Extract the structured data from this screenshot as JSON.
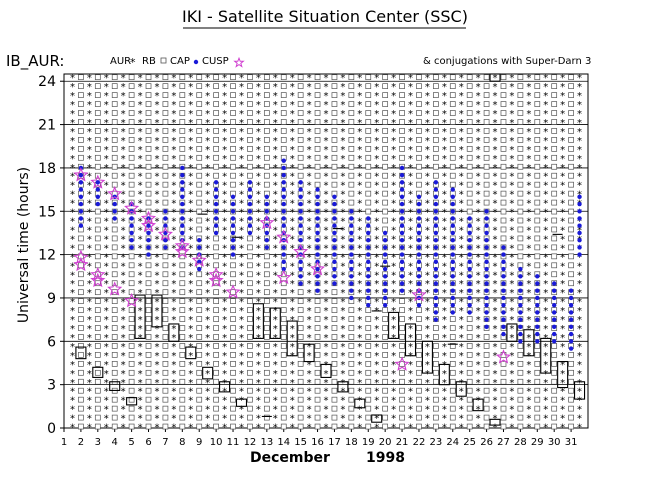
{
  "chart_data": {
    "type": "scatter",
    "title": "IKI - Satellite Situation Center (SSC)",
    "panel_label": "IB_AUR:",
    "right_note": "& conjugations with Super-Darn 3",
    "ylabel": "Universal time (hours)",
    "xlabel": "December",
    "year": "1998",
    "xlim": [
      1,
      32
    ],
    "ylim": [
      0,
      24.5
    ],
    "yticks": [
      0,
      3,
      6,
      9,
      12,
      15,
      18,
      21,
      24
    ],
    "xticks": [
      1,
      2,
      3,
      4,
      5,
      6,
      7,
      8,
      9,
      10,
      11,
      12,
      13,
      14,
      15,
      16,
      17,
      18,
      19,
      20,
      21,
      22,
      23,
      24,
      25,
      26,
      27,
      28,
      29,
      30,
      31
    ],
    "grid": "horizontal",
    "legend": [
      {
        "key": "aur",
        "label": "AUR",
        "color": "#00d0d8",
        "marker": "asterisk"
      },
      {
        "key": "rb",
        "label": "RB",
        "color": "#555555",
        "marker": "open-square"
      },
      {
        "key": "cap",
        "label": "CAP",
        "color": "#555555",
        "marker": "open-square"
      },
      {
        "key": "cusp",
        "label": "CUSP",
        "color": "#1a1ad8",
        "marker": "dot"
      },
      {
        "key": "conj",
        "label": "",
        "color": "#d040d0",
        "marker": "star"
      }
    ],
    "passes": [
      {
        "x": 1.5,
        "type": "aur"
      },
      {
        "x": 2.0,
        "type": "cap"
      },
      {
        "x": 2.5,
        "type": "aur"
      },
      {
        "x": 3.0,
        "type": "cap"
      },
      {
        "x": 3.5,
        "type": "aur"
      },
      {
        "x": 4.0,
        "type": "cap"
      },
      {
        "x": 4.5,
        "type": "aur"
      },
      {
        "x": 5.0,
        "type": "cap"
      },
      {
        "x": 5.5,
        "type": "aur"
      },
      {
        "x": 6.0,
        "type": "cap"
      },
      {
        "x": 6.5,
        "type": "aur"
      },
      {
        "x": 7.0,
        "type": "cap"
      },
      {
        "x": 7.5,
        "type": "aur"
      },
      {
        "x": 8.0,
        "type": "cap"
      },
      {
        "x": 8.5,
        "type": "aur"
      },
      {
        "x": 9.0,
        "type": "cap"
      },
      {
        "x": 9.5,
        "type": "aur"
      },
      {
        "x": 10.0,
        "type": "cap"
      },
      {
        "x": 10.5,
        "type": "aur"
      },
      {
        "x": 11.0,
        "type": "cap"
      },
      {
        "x": 11.5,
        "type": "aur"
      },
      {
        "x": 12.0,
        "type": "cap"
      },
      {
        "x": 12.5,
        "type": "aur"
      },
      {
        "x": 13.0,
        "type": "cap"
      },
      {
        "x": 13.5,
        "type": "aur"
      },
      {
        "x": 14.0,
        "type": "cap"
      },
      {
        "x": 14.5,
        "type": "aur"
      },
      {
        "x": 15.0,
        "type": "cap"
      },
      {
        "x": 15.5,
        "type": "aur"
      },
      {
        "x": 16.0,
        "type": "cap"
      },
      {
        "x": 16.5,
        "type": "aur"
      },
      {
        "x": 17.0,
        "type": "cap"
      },
      {
        "x": 17.5,
        "type": "aur"
      },
      {
        "x": 18.0,
        "type": "cap"
      },
      {
        "x": 18.5,
        "type": "aur"
      },
      {
        "x": 19.0,
        "type": "cap"
      },
      {
        "x": 19.5,
        "type": "aur"
      },
      {
        "x": 20.0,
        "type": "cap"
      },
      {
        "x": 20.5,
        "type": "aur"
      },
      {
        "x": 21.0,
        "type": "cap"
      },
      {
        "x": 21.5,
        "type": "aur"
      },
      {
        "x": 22.0,
        "type": "cap"
      },
      {
        "x": 22.5,
        "type": "aur"
      },
      {
        "x": 23.0,
        "type": "cap"
      },
      {
        "x": 23.5,
        "type": "aur"
      },
      {
        "x": 24.0,
        "type": "cap"
      },
      {
        "x": 24.5,
        "type": "aur"
      },
      {
        "x": 25.0,
        "type": "cap"
      },
      {
        "x": 25.5,
        "type": "aur"
      },
      {
        "x": 26.0,
        "type": "cap"
      },
      {
        "x": 26.5,
        "type": "aur"
      },
      {
        "x": 27.0,
        "type": "cap"
      },
      {
        "x": 27.5,
        "type": "aur"
      },
      {
        "x": 28.0,
        "type": "cap"
      },
      {
        "x": 28.5,
        "type": "aur"
      },
      {
        "x": 29.0,
        "type": "cap"
      },
      {
        "x": 29.5,
        "type": "aur"
      },
      {
        "x": 30.0,
        "type": "cap"
      },
      {
        "x": 30.5,
        "type": "aur"
      },
      {
        "x": 31.0,
        "type": "cap"
      },
      {
        "x": 31.5,
        "type": "aur"
      }
    ],
    "cusp": [
      {
        "x": 2.0,
        "y0": 14.0,
        "y1": 18.0
      },
      {
        "x": 3.0,
        "y0": 15.5,
        "y1": 17.0
      },
      {
        "x": 4.0,
        "y0": 14.5,
        "y1": 16.0
      },
      {
        "x": 5.0,
        "y0": 12.5,
        "y1": 15.5
      },
      {
        "x": 6.0,
        "y0": 12.0,
        "y1": 14.5
      },
      {
        "x": 7.0,
        "y0": 12.5,
        "y1": 15.0
      },
      {
        "x": 8.0,
        "y0": 12.5,
        "y1": 18.0
      },
      {
        "x": 9.0,
        "y0": 11.0,
        "y1": 13.0
      },
      {
        "x": 10.0,
        "y0": 13.5,
        "y1": 17.0
      },
      {
        "x": 11.0,
        "y0": 12.0,
        "y1": 16.0
      },
      {
        "x": 12.0,
        "y0": 13.5,
        "y1": 17.0
      },
      {
        "x": 13.0,
        "y0": 12.5,
        "y1": 16.0
      },
      {
        "x": 14.0,
        "y0": 11.0,
        "y1": 18.5
      },
      {
        "x": 15.0,
        "y0": 10.0,
        "y1": 17.0
      },
      {
        "x": 16.0,
        "y0": 9.5,
        "y1": 16.5
      },
      {
        "x": 17.0,
        "y0": 10.0,
        "y1": 16.0
      },
      {
        "x": 18.0,
        "y0": 9.0,
        "y1": 15.0
      },
      {
        "x": 19.0,
        "y0": 8.5,
        "y1": 14.5
      },
      {
        "x": 20.0,
        "y0": 8.5,
        "y1": 13.5
      },
      {
        "x": 21.0,
        "y0": 9.5,
        "y1": 18.0
      },
      {
        "x": 22.0,
        "y0": 8.5,
        "y1": 16.0
      },
      {
        "x": 23.0,
        "y0": 7.5,
        "y1": 17.0
      },
      {
        "x": 24.0,
        "y0": 8.0,
        "y1": 16.5
      },
      {
        "x": 25.0,
        "y0": 8.0,
        "y1": 14.5
      },
      {
        "x": 26.0,
        "y0": 7.0,
        "y1": 15.0
      },
      {
        "x": 27.0,
        "y0": 6.5,
        "y1": 12.5
      },
      {
        "x": 28.0,
        "y0": 6.0,
        "y1": 11.0
      },
      {
        "x": 29.0,
        "y0": 6.0,
        "y1": 10.5
      },
      {
        "x": 30.0,
        "y0": 6.0,
        "y1": 10.0
      },
      {
        "x": 31.0,
        "y0": 5.5,
        "y1": 9.5
      },
      {
        "x": 31.5,
        "y0": 12.0,
        "y1": 16.0
      }
    ],
    "conjunction_boxes": [
      {
        "x": 2.0,
        "y0": 4.8,
        "y1": 5.6
      },
      {
        "x": 3.0,
        "y0": 3.5,
        "y1": 4.2
      },
      {
        "x": 4.0,
        "y0": 2.6,
        "y1": 3.2
      },
      {
        "x": 5.0,
        "y0": 1.6,
        "y1": 2.1
      },
      {
        "x": 5.5,
        "y0": 6.2,
        "y1": 9.2
      },
      {
        "x": 6.5,
        "y0": 7.0,
        "y1": 9.2
      },
      {
        "x": 7.5,
        "y0": 6.0,
        "y1": 7.2
      },
      {
        "x": 8.5,
        "y0": 4.8,
        "y1": 5.6
      },
      {
        "x": 9.5,
        "y0": 3.4,
        "y1": 4.2
      },
      {
        "x": 10.5,
        "y0": 2.5,
        "y1": 3.2
      },
      {
        "x": 11.5,
        "y0": 1.5,
        "y1": 2.0
      },
      {
        "x": 12.5,
        "y0": 6.2,
        "y1": 8.6
      },
      {
        "x": 13.5,
        "y0": 6.2,
        "y1": 8.3
      },
      {
        "x": 14.5,
        "y0": 5.0,
        "y1": 7.4
      },
      {
        "x": 15.5,
        "y0": 4.6,
        "y1": 5.8
      },
      {
        "x": 16.5,
        "y0": 3.5,
        "y1": 4.4
      },
      {
        "x": 17.5,
        "y0": 2.5,
        "y1": 3.2
      },
      {
        "x": 18.5,
        "y0": 1.4,
        "y1": 2.0
      },
      {
        "x": 19.5,
        "y0": 0.4,
        "y1": 0.9
      },
      {
        "x": 20.5,
        "y0": 6.2,
        "y1": 8.0
      },
      {
        "x": 21.5,
        "y0": 5.0,
        "y1": 7.2
      },
      {
        "x": 22.5,
        "y0": 3.8,
        "y1": 6.0
      },
      {
        "x": 23.5,
        "y0": 3.0,
        "y1": 4.4
      },
      {
        "x": 24.5,
        "y0": 2.2,
        "y1": 3.2
      },
      {
        "x": 25.5,
        "y0": 1.2,
        "y1": 2.0
      },
      {
        "x": 26.5,
        "y0": 0.2,
        "y1": 0.6
      },
      {
        "x": 27.5,
        "y0": 6.0,
        "y1": 7.2
      },
      {
        "x": 28.5,
        "y0": 5.0,
        "y1": 6.8
      },
      {
        "x": 29.5,
        "y0": 3.8,
        "y1": 6.2
      },
      {
        "x": 30.5,
        "y0": 2.8,
        "y1": 4.6
      },
      {
        "x": 31.5,
        "y0": 2.0,
        "y1": 3.2
      },
      {
        "x": 26.5,
        "y0": 24.0,
        "y1": 24.5
      }
    ],
    "stars": [
      {
        "x": 2.0,
        "y": 17.5
      },
      {
        "x": 2.0,
        "y": 11.8
      },
      {
        "x": 2.0,
        "y": 11.3
      },
      {
        "x": 3.0,
        "y": 17.0
      },
      {
        "x": 3.0,
        "y": 10.6
      },
      {
        "x": 3.0,
        "y": 10.2
      },
      {
        "x": 4.0,
        "y": 16.2
      },
      {
        "x": 4.0,
        "y": 9.6
      },
      {
        "x": 5.0,
        "y": 15.2
      },
      {
        "x": 5.0,
        "y": 8.8
      },
      {
        "x": 6.0,
        "y": 14.5
      },
      {
        "x": 6.0,
        "y": 14.0
      },
      {
        "x": 7.0,
        "y": 13.4
      },
      {
        "x": 8.0,
        "y": 12.6
      },
      {
        "x": 8.0,
        "y": 12.2
      },
      {
        "x": 9.0,
        "y": 11.6
      },
      {
        "x": 10.0,
        "y": 10.6
      },
      {
        "x": 10.0,
        "y": 10.2
      },
      {
        "x": 11.0,
        "y": 9.4
      },
      {
        "x": 13.0,
        "y": 14.2
      },
      {
        "x": 14.0,
        "y": 13.2
      },
      {
        "x": 14.0,
        "y": 10.4
      },
      {
        "x": 15.0,
        "y": 12.2
      },
      {
        "x": 16.0,
        "y": 11.0
      },
      {
        "x": 21.0,
        "y": 4.4
      },
      {
        "x": 22.0,
        "y": 9.2
      },
      {
        "x": 27.0,
        "y": 4.9
      }
    ],
    "dashes": [
      {
        "x": 9.2,
        "y": 14.8
      },
      {
        "x": 11.2,
        "y": 13.2
      },
      {
        "x": 13.0,
        "y": 0.8
      },
      {
        "x": 17.2,
        "y": 13.8
      },
      {
        "x": 19.5,
        "y": 8.1
      },
      {
        "x": 20.0,
        "y": 11.2
      },
      {
        "x": 24.0,
        "y": 5.8
      },
      {
        "x": 30.2,
        "y": 13.4
      }
    ]
  },
  "legend_labels": {
    "aur": "AUR",
    "rb": "RB",
    "cap": "CAP",
    "cusp": "CUSP"
  }
}
